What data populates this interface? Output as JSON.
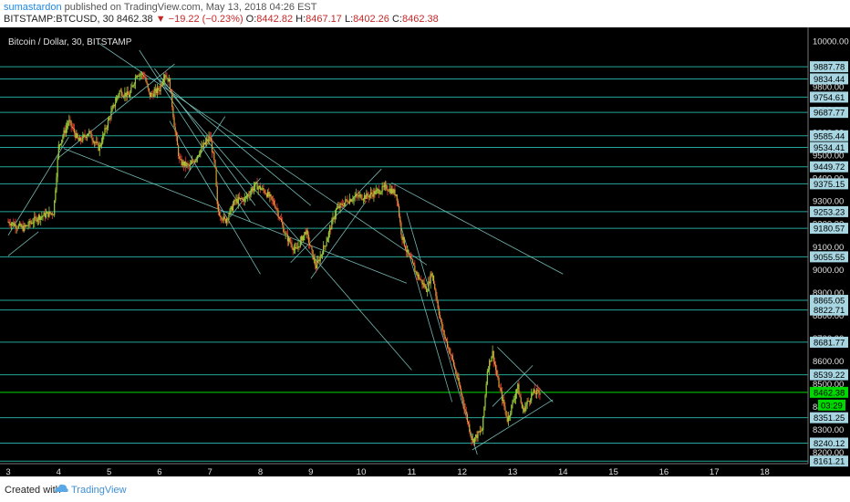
{
  "header": {
    "author": "sumastardon",
    "published": "published on TradingView.com, May 13, 2018 04:26 EST",
    "symbol": "BITSTAMP:BTCUSD, 30",
    "last": "8462.38",
    "change": "▼ −19.22 (−0.23%)",
    "o_label": "O:",
    "o_val": "8442.82",
    "h_label": "H:",
    "h_val": "8467.17",
    "l_label": "L:",
    "l_val": "8402.26",
    "c_label": "C:",
    "c_val": "8462.38"
  },
  "footer": {
    "created": "Created with",
    "brand": "TradingView"
  },
  "colors": {
    "background": "#000000",
    "up": "#9ccc3a",
    "down": "#e53935",
    "body": "#cfa533",
    "hline": "#26a69a",
    "trendline": "#80cbc4",
    "label_bg": "#a7d6e2",
    "current_bg": "#00d900"
  },
  "chart_data": {
    "type": "candlestick",
    "title": "Bitcoin / Dollar, 30, BITSTAMP",
    "x_ticks": [
      "3",
      "4",
      "5",
      "6",
      "7",
      "8",
      "9",
      "10",
      "11",
      "12",
      "13",
      "14",
      "15",
      "16",
      "17",
      "18"
    ],
    "xlim": [
      3.0,
      18.8
    ],
    "ylim": [
      8150,
      10060
    ],
    "y_ticks": [
      10000,
      9800,
      9700,
      9600,
      9500,
      9400,
      9300,
      9200,
      9100,
      9000,
      8900,
      8800,
      8700,
      8600,
      8500,
      8400,
      8300,
      8200
    ],
    "y_tick_labels": [
      "10000.00",
      "9800.00",
      "9700.00",
      "9600.00",
      "9500.00",
      "9400.00",
      "9300.00",
      "9200.00",
      "9100.00",
      "9000.00",
      "8900.00",
      "8800.00",
      "8700.00",
      "8600.00",
      "8500.00",
      "8400.00",
      "8300.00",
      "8200.00"
    ],
    "price_path": [
      [
        3.0,
        9210
      ],
      [
        3.3,
        9180
      ],
      [
        3.6,
        9230
      ],
      [
        3.9,
        9250
      ],
      [
        4.0,
        9540
      ],
      [
        4.2,
        9650
      ],
      [
        4.4,
        9560
      ],
      [
        4.6,
        9600
      ],
      [
        4.8,
        9530
      ],
      [
        5.0,
        9660
      ],
      [
        5.2,
        9780
      ],
      [
        5.4,
        9760
      ],
      [
        5.55,
        9860
      ],
      [
        5.7,
        9850
      ],
      [
        5.8,
        9760
      ],
      [
        6.0,
        9790
      ],
      [
        6.1,
        9860
      ],
      [
        6.2,
        9820
      ],
      [
        6.3,
        9620
      ],
      [
        6.4,
        9470
      ],
      [
        6.6,
        9450
      ],
      [
        6.8,
        9520
      ],
      [
        7.0,
        9580
      ],
      [
        7.1,
        9450
      ],
      [
        7.15,
        9260
      ],
      [
        7.3,
        9210
      ],
      [
        7.5,
        9300
      ],
      [
        7.7,
        9310
      ],
      [
        7.9,
        9370
      ],
      [
        8.1,
        9340
      ],
      [
        8.3,
        9280
      ],
      [
        8.5,
        9150
      ],
      [
        8.7,
        9080
      ],
      [
        8.9,
        9170
      ],
      [
        9.1,
        9010
      ],
      [
        9.3,
        9120
      ],
      [
        9.5,
        9260
      ],
      [
        9.7,
        9300
      ],
      [
        9.9,
        9320
      ],
      [
        10.1,
        9320
      ],
      [
        10.3,
        9340
      ],
      [
        10.5,
        9360
      ],
      [
        10.7,
        9330
      ],
      [
        10.8,
        9150
      ],
      [
        10.9,
        9080
      ],
      [
        11.1,
        8980
      ],
      [
        11.3,
        8910
      ],
      [
        11.4,
        8990
      ],
      [
        11.6,
        8740
      ],
      [
        11.8,
        8610
      ],
      [
        12.0,
        8440
      ],
      [
        12.2,
        8250
      ],
      [
        12.4,
        8300
      ],
      [
        12.5,
        8560
      ],
      [
        12.6,
        8640
      ],
      [
        12.7,
        8520
      ],
      [
        12.9,
        8340
      ],
      [
        13.1,
        8490
      ],
      [
        13.2,
        8380
      ],
      [
        13.4,
        8460
      ],
      [
        13.55,
        8462
      ]
    ],
    "level_lines": [
      9887.78,
      9834.44,
      9754.61,
      9687.77,
      9585.44,
      9534.41,
      9449.72,
      9375.15,
      9253.23,
      9180.57,
      9055.55,
      8865.05,
      8822.71,
      8681.77,
      8539.22,
      8462.38,
      8351.25,
      8240.12,
      8161.21
    ],
    "level_labels": [
      "9887.78",
      "9834.44",
      "9754.61",
      "9687.77",
      "9585.44",
      "9534.41",
      "9449.72",
      "9375.15",
      "9253.23",
      "9180.57",
      "9055.55",
      "8865.05",
      "8822.71",
      "8681.77",
      "8539.22",
      "8462.38",
      "8351.25",
      "8240.12",
      "8161.21"
    ],
    "current_price": "8462.38",
    "countdown": "03:29",
    "trendlines": [
      [
        [
          3.0,
          9150
        ],
        [
          4.2,
          9580
        ]
      ],
      [
        [
          3.0,
          9060
        ],
        [
          3.6,
          9165
        ]
      ],
      [
        [
          4.0,
          9490
        ],
        [
          6.3,
          9900
        ]
      ],
      [
        [
          4.1,
          9530
        ],
        [
          10.9,
          8940
        ]
      ],
      [
        [
          4.8,
          9990
        ],
        [
          11.3,
          9020
        ]
      ],
      [
        [
          5.6,
          9960
        ],
        [
          7.8,
          9210
        ]
      ],
      [
        [
          5.9,
          9880
        ],
        [
          7.9,
          9280
        ]
      ],
      [
        [
          6.0,
          9830
        ],
        [
          9.0,
          9280
        ]
      ],
      [
        [
          6.2,
          9650
        ],
        [
          8.0,
          8980
        ]
      ],
      [
        [
          6.5,
          9400
        ],
        [
          7.3,
          9670
        ]
      ],
      [
        [
          7.4,
          9230
        ],
        [
          8.0,
          9400
        ]
      ],
      [
        [
          8.6,
          9030
        ],
        [
          10.4,
          9440
        ]
      ],
      [
        [
          9.0,
          8960
        ],
        [
          10.1,
          9300
        ]
      ],
      [
        [
          6.0,
          9830
        ],
        [
          11.0,
          8560
        ]
      ],
      [
        [
          10.6,
          9380
        ],
        [
          14.0,
          8980
        ]
      ],
      [
        [
          10.9,
          9250
        ],
        [
          12.3,
          8190
        ]
      ],
      [
        [
          10.8,
          9180
        ],
        [
          11.8,
          8420
        ]
      ],
      [
        [
          12.2,
          8210
        ],
        [
          13.8,
          8430
        ]
      ],
      [
        [
          12.7,
          8660
        ],
        [
          13.8,
          8420
        ]
      ],
      [
        [
          12.6,
          8400
        ],
        [
          13.4,
          8580
        ]
      ]
    ]
  }
}
